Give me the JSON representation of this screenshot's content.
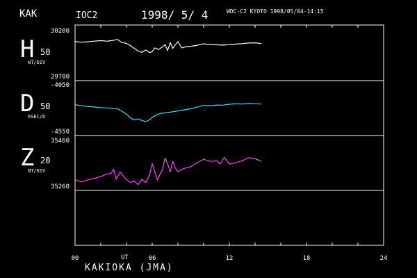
{
  "header": {
    "station": "KAK",
    "station_color": "#ff2020",
    "series_id": "IOC2",
    "date": "1998/ 5/ 4",
    "source": "WDC-C2 KYOTO 1998/05/04-14:15"
  },
  "footer": {
    "observatory": "KAKIOKA (JMA)",
    "time_unit": "UT"
  },
  "chart_data": {
    "type": "line",
    "x_range": [
      0,
      24
    ],
    "x_ticks": [
      "00",
      "06",
      "12",
      "18",
      "24"
    ],
    "x_tick_values": [
      0,
      6,
      12,
      18,
      24
    ],
    "panels": [
      {
        "component": "H",
        "scale_value": "50",
        "scale_unit": "NT/DIV",
        "top_label": "30200",
        "bottom_label": "29700",
        "ylim": [
          29700,
          30200
        ],
        "color": "#ffffff",
        "x": [
          0,
          0.5,
          1.0,
          1.5,
          2.0,
          2.5,
          3.0,
          3.3,
          3.6,
          4.0,
          4.3,
          4.6,
          4.9,
          5.2,
          5.5,
          5.8,
          6.0,
          6.2,
          6.5,
          6.8,
          7.0,
          7.2,
          7.4,
          7.6,
          7.8,
          8.0,
          8.3,
          8.6,
          9.0,
          9.5,
          10.0,
          10.5,
          11.0,
          11.5,
          12.0,
          12.5,
          13.0,
          13.5,
          14.0,
          14.5
        ],
        "values": [
          30070,
          30064,
          30068,
          30074,
          30079,
          30073,
          30082,
          30090,
          30063,
          30052,
          30032,
          30005,
          29980,
          29968,
          29990,
          29965,
          29975,
          30010,
          29995,
          30020,
          30040,
          29985,
          30060,
          30005,
          30040,
          30070,
          30010,
          30020,
          30025,
          30035,
          30048,
          30042,
          30039,
          30036,
          30040,
          30046,
          30050,
          30056,
          30058,
          30050
        ]
      },
      {
        "component": "D",
        "scale_value": "50",
        "scale_unit": "6SEC/D",
        "top_label": "-4050",
        "bottom_label": "-4550",
        "ylim": [
          -4550,
          -4050
        ],
        "color": "#40e0f0",
        "x": [
          0,
          0.5,
          1.0,
          1.5,
          2.0,
          2.5,
          3.0,
          3.3,
          3.6,
          4.0,
          4.3,
          4.6,
          4.9,
          5.2,
          5.5,
          5.8,
          6.0,
          6.3,
          6.6,
          7.0,
          7.5,
          8.0,
          8.5,
          9.0,
          9.5,
          10.0,
          10.5,
          11.0,
          11.5,
          12.0,
          12.5,
          13.0,
          13.5,
          14.0,
          14.5
        ],
        "values": [
          -4262,
          -4272,
          -4278,
          -4284,
          -4290,
          -4292,
          -4298,
          -4300,
          -4320,
          -4350,
          -4385,
          -4405,
          -4395,
          -4410,
          -4420,
          -4402,
          -4380,
          -4360,
          -4345,
          -4338,
          -4330,
          -4320,
          -4310,
          -4300,
          -4285,
          -4268,
          -4272,
          -4265,
          -4266,
          -4258,
          -4254,
          -4255,
          -4252,
          -4253,
          -4256
        ]
      },
      {
        "component": "Z",
        "scale_value": "20",
        "scale_unit": "NT/DIV",
        "top_label": "35460",
        "bottom_label": "35260",
        "ylim": [
          35260,
          35460
        ],
        "color": "#ff40ff",
        "x": [
          0,
          0.5,
          1.0,
          1.5,
          2.0,
          2.5,
          2.8,
          3.0,
          3.2,
          3.5,
          3.8,
          4.0,
          4.3,
          4.6,
          4.9,
          5.2,
          5.5,
          5.8,
          6.0,
          6.2,
          6.4,
          6.6,
          6.8,
          7.0,
          7.2,
          7.4,
          7.6,
          7.8,
          8.0,
          8.3,
          8.6,
          9.0,
          9.5,
          10.0,
          10.5,
          11.0,
          11.3,
          11.6,
          12.0,
          12.5,
          13.0,
          13.5,
          14.0,
          14.5
        ],
        "values": [
          35300,
          35292,
          35300,
          35306,
          35313,
          35322,
          35325,
          35340,
          35302,
          35330,
          35312,
          35300,
          35290,
          35296,
          35282,
          35302,
          35290,
          35320,
          35362,
          35330,
          35300,
          35320,
          35340,
          35382,
          35360,
          35330,
          35370,
          35345,
          35330,
          35340,
          35345,
          35350,
          35365,
          35378,
          35370,
          35372,
          35360,
          35385,
          35360,
          35365,
          35372,
          35384,
          35380,
          35370
        ]
      }
    ]
  }
}
